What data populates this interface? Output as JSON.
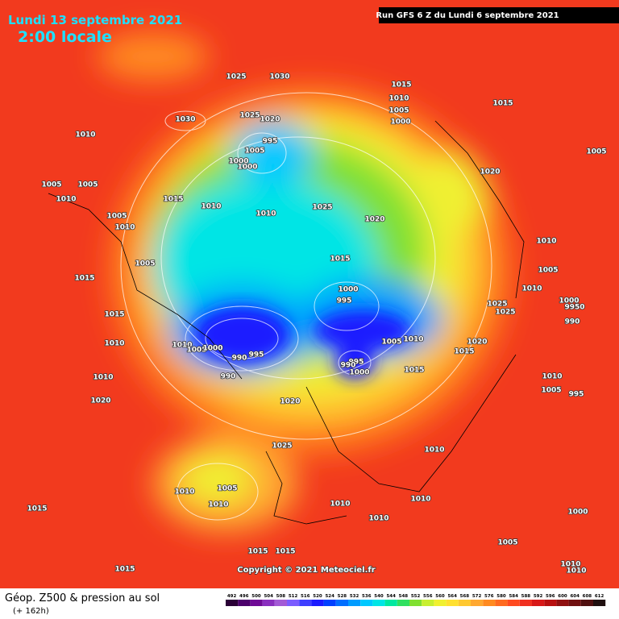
{
  "header": {
    "date": "Lundi 13 septembre 2021",
    "time": "2:00 locale",
    "run": "Run GFS 6 Z du Lundi 6 septembre 2021"
  },
  "isobar_labels": [
    "1025",
    "1030",
    "1015",
    "1010",
    "1005",
    "1000",
    "1015",
    "1030",
    "1025",
    "1020",
    "1010",
    "995",
    "1005",
    "1000",
    "1000",
    "1005",
    "1020",
    "1005",
    "1005",
    "1010",
    "1015",
    "1010",
    "1010",
    "1025",
    "1020",
    "1005",
    "1010",
    "1005",
    "1015",
    "1010",
    "1005",
    "1015",
    "1000",
    "995",
    "1010",
    "1000",
    "9950",
    "1025",
    "1025",
    "1015",
    "990",
    "1010",
    "1010",
    "1005",
    "1000",
    "990",
    "995",
    "1005",
    "1010",
    "1020",
    "1015",
    "995",
    "990",
    "1000",
    "1015",
    "990",
    "1010",
    "1010",
    "1005",
    "995",
    "1020",
    "1020",
    "1025",
    "1010",
    "1010",
    "1005",
    "1010",
    "1010",
    "1010",
    "1015",
    "1010",
    "1000",
    "1005",
    "1015",
    "1015",
    "1015",
    "1010",
    "1010"
  ],
  "copyright": "Copyright © 2021 Meteociel.fr",
  "footer": {
    "title": "Géop. Z500 & pression au sol",
    "lead": "(+ 162h)"
  },
  "scale": {
    "values": [
      492,
      496,
      500,
      504,
      508,
      512,
      516,
      520,
      524,
      528,
      532,
      536,
      540,
      544,
      548,
      552,
      556,
      560,
      564,
      568,
      572,
      576,
      580,
      584,
      588,
      592,
      596,
      600,
      604,
      608,
      612
    ],
    "colors": [
      "#2a0036",
      "#4b006b",
      "#6f0a96",
      "#8a2fbf",
      "#a35ad6",
      "#7b5cff",
      "#3e3eff",
      "#1a1aff",
      "#0040ff",
      "#006eff",
      "#009cff",
      "#00c8ff",
      "#00e5e5",
      "#00e8a0",
      "#30e060",
      "#80e030",
      "#c8ef30",
      "#f0f030",
      "#ffe030",
      "#ffc830",
      "#ffa830",
      "#ff8a20",
      "#ff6a20",
      "#ff4a20",
      "#f03020",
      "#d81818",
      "#b81010",
      "#901010",
      "#701010",
      "#501010",
      "#201010"
    ]
  }
}
